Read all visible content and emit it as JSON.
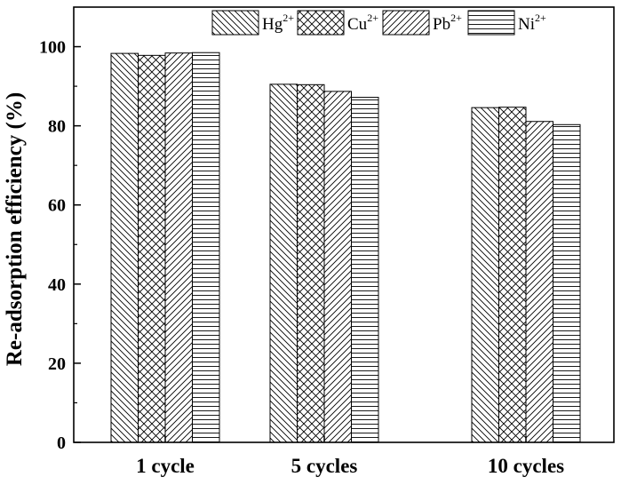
{
  "chart_data": {
    "type": "bar",
    "categories": [
      "1 cycle",
      "5 cycles",
      "10 cycles"
    ],
    "series": [
      {
        "name": "Hg",
        "charge": "2+",
        "pattern": "diag-back",
        "values": [
          98.3,
          90.5,
          84.6
        ]
      },
      {
        "name": "Cu",
        "charge": "2+",
        "pattern": "crosshatch",
        "values": [
          97.8,
          90.4,
          84.7
        ]
      },
      {
        "name": "Pb",
        "charge": "2+",
        "pattern": "diag-fwd",
        "values": [
          98.4,
          88.7,
          81.1
        ]
      },
      {
        "name": "Ni",
        "charge": "2+",
        "pattern": "horizontal",
        "values": [
          98.5,
          87.2,
          80.3
        ]
      }
    ],
    "title": "",
    "xlabel": "",
    "ylabel": "Re-adsorption efficiency (%)",
    "ylim": [
      0,
      110
    ],
    "yticks": [
      0,
      20,
      40,
      60,
      80,
      100
    ],
    "legend_position": "top-right",
    "grid": false,
    "bar_fill": "#ffffff",
    "bar_stroke": "#000000"
  }
}
